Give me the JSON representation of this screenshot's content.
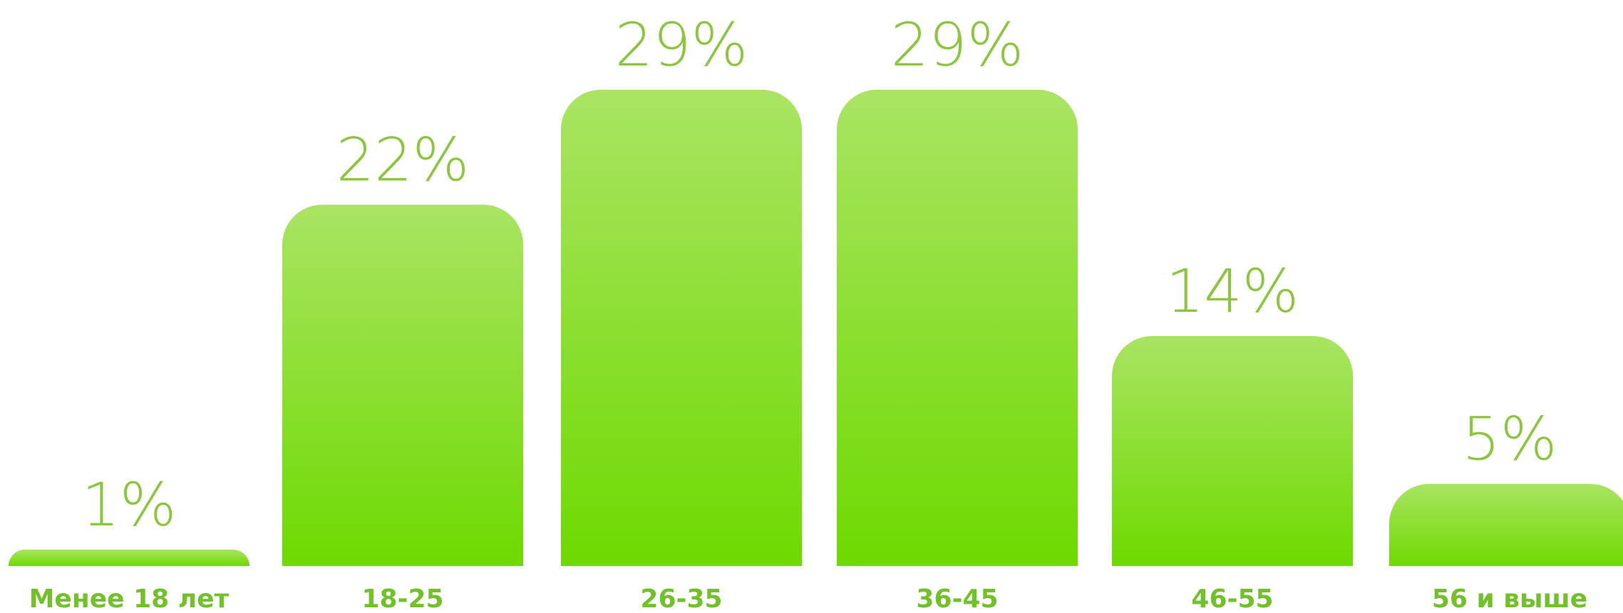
{
  "chart_data": {
    "type": "bar",
    "categories": [
      "Менее 18 лет",
      "18-25",
      "26-35",
      "36-45",
      "46-55",
      "56 и выше"
    ],
    "values": [
      1,
      22,
      29,
      29,
      14,
      5
    ],
    "data_labels": [
      "1%",
      "22%",
      "29%",
      "29%",
      "14%",
      "5%"
    ],
    "title": "",
    "xlabel": "",
    "ylabel": "",
    "ylim": [
      0,
      29
    ],
    "grid": false,
    "colors": {
      "bar_top": "#aae463",
      "bar_bottom": "#6dda00",
      "value_label": "#8cc63f",
      "category_label": "#72c12a"
    }
  }
}
